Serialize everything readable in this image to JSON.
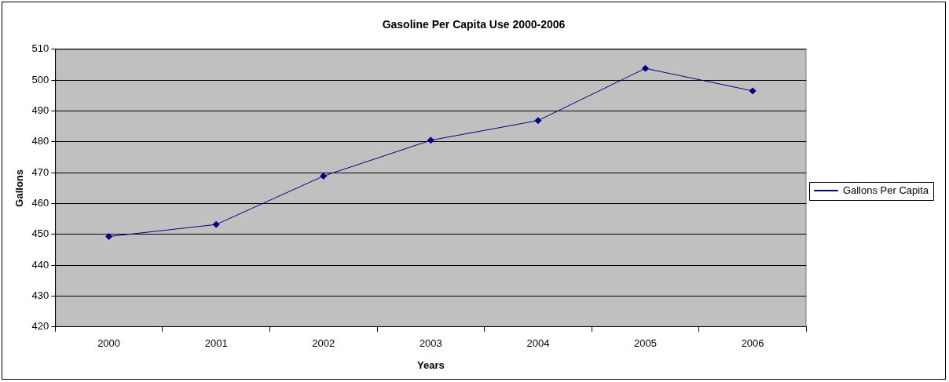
{
  "chart_data": {
    "type": "line",
    "title": "Gasoline Per Capita Use 2000-2006",
    "xlabel": "Years",
    "ylabel": "Gallons",
    "categories": [
      "2000",
      "2001",
      "2002",
      "2003",
      "2004",
      "2005",
      "2006"
    ],
    "series": [
      {
        "name": "Gallons Per Capita",
        "color": "#000080",
        "values": [
          449.3,
          453.2,
          468.9,
          480.5,
          486.9,
          503.8,
          496.5
        ]
      }
    ],
    "ylim": [
      420,
      510
    ],
    "yticks": [
      420,
      430,
      440,
      450,
      460,
      470,
      480,
      490,
      500,
      510
    ],
    "grid": "y",
    "legend": "right",
    "marker": "diamond",
    "line_style": "solid"
  }
}
